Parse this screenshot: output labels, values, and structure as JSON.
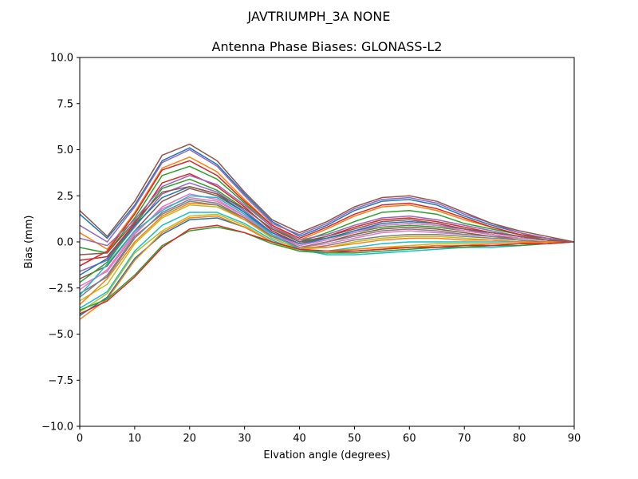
{
  "figure": {
    "suptitle": "JAVTRIUMPH_3A   NONE"
  },
  "chart_data": {
    "type": "line",
    "title": "Antenna Phase Biases: GLONASS-L2",
    "xlabel": "Elvation angle (degrees)",
    "ylabel": "Bias (mm)",
    "xlim": [
      0,
      90
    ],
    "ylim": [
      -10,
      10
    ],
    "xticks": [
      "0",
      "10",
      "20",
      "30",
      "40",
      "50",
      "60",
      "70",
      "80",
      "90"
    ],
    "yticks": [
      "−10.0",
      "−7.5",
      "−5.0",
      "−2.5",
      "0.0",
      "2.5",
      "5.0",
      "7.5",
      "10.0"
    ],
    "grid": false,
    "x": [
      0,
      5,
      10,
      15,
      20,
      25,
      30,
      35,
      40,
      45,
      50,
      55,
      60,
      65,
      70,
      75,
      80,
      85,
      90
    ],
    "envelope": {
      "upper": [
        1.8,
        0.4,
        2.3,
        4.8,
        5.4,
        4.5,
        2.8,
        1.2,
        0.6,
        1.2,
        2.0,
        2.5,
        2.5,
        2.2,
        1.6,
        1.1,
        0.6,
        0.3,
        0.0
      ],
      "lower": [
        -4.4,
        -3.2,
        -1.9,
        -0.3,
        0.6,
        0.8,
        0.4,
        -0.1,
        -0.5,
        -0.7,
        -0.7,
        -0.6,
        -0.5,
        -0.4,
        -0.3,
        -0.3,
        -0.3,
        -0.2,
        0.0
      ]
    },
    "series": [
      {
        "color": "#1f77b4",
        "values": [
          1.5,
          0.2,
          2.0,
          4.4,
          5.1,
          4.2,
          2.6,
          1.1,
          0.3,
          0.9,
          1.7,
          2.2,
          2.3,
          2.0,
          1.4,
          0.9,
          0.5,
          0.2,
          0.0
        ]
      },
      {
        "color": "#ff7f0e",
        "values": [
          0.5,
          -0.4,
          1.6,
          4.0,
          4.6,
          3.8,
          2.3,
          0.9,
          0.1,
          0.7,
          1.4,
          1.9,
          2.0,
          1.7,
          1.2,
          0.8,
          0.4,
          0.2,
          0.0
        ]
      },
      {
        "color": "#2ca02c",
        "values": [
          -0.3,
          -0.6,
          1.3,
          3.6,
          4.1,
          3.4,
          2.1,
          0.8,
          0.0,
          0.5,
          1.1,
          1.6,
          1.7,
          1.5,
          1.0,
          0.7,
          0.4,
          0.1,
          0.0
        ]
      },
      {
        "color": "#d62728",
        "values": [
          -1.0,
          -0.8,
          1.0,
          3.2,
          3.7,
          3.0,
          1.9,
          0.6,
          -0.1,
          0.3,
          0.8,
          1.2,
          1.3,
          1.1,
          0.8,
          0.5,
          0.3,
          0.1,
          0.0
        ]
      },
      {
        "color": "#9467bd",
        "values": [
          -1.6,
          -1.0,
          0.8,
          2.6,
          3.2,
          2.7,
          1.7,
          0.5,
          -0.2,
          0.2,
          0.6,
          0.9,
          1.0,
          0.9,
          0.7,
          0.4,
          0.2,
          0.1,
          0.0
        ]
      },
      {
        "color": "#8c564b",
        "values": [
          -2.0,
          -1.3,
          0.6,
          2.2,
          2.9,
          2.5,
          1.6,
          0.4,
          -0.3,
          0.0,
          0.4,
          0.7,
          0.8,
          0.7,
          0.5,
          0.3,
          0.2,
          0.1,
          0.0
        ]
      },
      {
        "color": "#e377c2",
        "values": [
          -2.4,
          -1.6,
          0.4,
          1.9,
          2.6,
          2.3,
          1.4,
          0.3,
          -0.3,
          -0.1,
          0.2,
          0.5,
          0.6,
          0.5,
          0.4,
          0.3,
          0.1,
          0.0,
          0.0
        ]
      },
      {
        "color": "#7f7f7f",
        "values": [
          -2.8,
          -1.9,
          0.2,
          1.6,
          2.3,
          2.1,
          1.3,
          0.2,
          -0.4,
          -0.2,
          0.1,
          0.3,
          0.4,
          0.4,
          0.3,
          0.2,
          0.1,
          0.0,
          0.0
        ]
      },
      {
        "color": "#bcbd22",
        "values": [
          -3.2,
          -2.3,
          -0.1,
          1.3,
          2.0,
          1.9,
          1.2,
          0.2,
          -0.4,
          -0.3,
          0.0,
          0.2,
          0.3,
          0.3,
          0.2,
          0.1,
          0.0,
          0.0,
          0.0
        ]
      },
      {
        "color": "#17becf",
        "values": [
          -3.6,
          -2.7,
          -0.5,
          0.9,
          1.6,
          1.6,
          1.0,
          0.1,
          -0.5,
          -0.5,
          -0.3,
          -0.1,
          0.0,
          0.0,
          0.0,
          0.0,
          0.0,
          0.0,
          0.0
        ]
      },
      {
        "color": "#1f77b4",
        "values": [
          -4.0,
          -3.0,
          -0.9,
          0.4,
          1.2,
          1.3,
          0.8,
          0.0,
          -0.5,
          -0.6,
          -0.5,
          -0.4,
          -0.3,
          -0.2,
          -0.2,
          -0.1,
          -0.1,
          0.0,
          0.0
        ]
      },
      {
        "color": "#ff7f0e",
        "values": [
          -3.4,
          -2.0,
          0.0,
          1.4,
          2.1,
          2.0,
          1.2,
          0.3,
          -0.3,
          -0.3,
          -0.1,
          0.1,
          0.2,
          0.2,
          0.1,
          0.1,
          0.0,
          0.0,
          0.0
        ]
      },
      {
        "color": "#2ca02c",
        "values": [
          -2.2,
          -1.1,
          0.9,
          2.9,
          3.4,
          2.8,
          1.8,
          0.7,
          0.0,
          0.2,
          0.5,
          0.8,
          0.9,
          0.8,
          0.6,
          0.4,
          0.2,
          0.1,
          0.0
        ]
      },
      {
        "color": "#d62728",
        "values": [
          -1.3,
          -0.5,
          1.5,
          3.9,
          4.4,
          3.6,
          2.2,
          0.9,
          0.2,
          0.8,
          1.5,
          2.0,
          2.1,
          1.8,
          1.3,
          0.8,
          0.4,
          0.2,
          0.0
        ]
      },
      {
        "color": "#9467bd",
        "values": [
          0.9,
          0.0,
          1.9,
          4.3,
          5.0,
          4.1,
          2.5,
          1.0,
          0.4,
          1.0,
          1.8,
          2.3,
          2.4,
          2.1,
          1.5,
          1.0,
          0.5,
          0.2,
          0.0
        ]
      },
      {
        "color": "#8c564b",
        "values": [
          1.7,
          0.3,
          2.2,
          4.7,
          5.3,
          4.4,
          2.7,
          1.2,
          0.5,
          1.1,
          1.9,
          2.4,
          2.5,
          2.2,
          1.6,
          1.0,
          0.6,
          0.3,
          0.0
        ]
      },
      {
        "color": "#e377c2",
        "values": [
          -2.6,
          -1.5,
          0.5,
          1.8,
          2.4,
          2.2,
          1.4,
          0.4,
          -0.2,
          0.1,
          0.5,
          0.9,
          1.0,
          0.9,
          0.6,
          0.4,
          0.2,
          0.1,
          0.0
        ]
      },
      {
        "color": "#7f7f7f",
        "values": [
          -3.0,
          -1.8,
          0.3,
          1.5,
          2.2,
          2.0,
          1.3,
          0.3,
          -0.3,
          0.0,
          0.3,
          0.6,
          0.7,
          0.6,
          0.4,
          0.3,
          0.1,
          0.0,
          0.0
        ]
      },
      {
        "color": "#bcbd22",
        "values": [
          -3.8,
          -2.8,
          -0.6,
          0.6,
          1.4,
          1.5,
          0.9,
          0.0,
          -0.5,
          -0.6,
          -0.4,
          -0.3,
          -0.2,
          -0.1,
          -0.1,
          -0.1,
          -0.1,
          0.0,
          0.0
        ]
      },
      {
        "color": "#17becf",
        "values": [
          -2.9,
          -1.2,
          0.6,
          1.7,
          2.5,
          2.4,
          1.5,
          0.4,
          -0.4,
          -0.7,
          -0.7,
          -0.6,
          -0.5,
          -0.4,
          -0.3,
          -0.3,
          -0.2,
          -0.1,
          0.0
        ]
      },
      {
        "color": "#1f77b4",
        "values": [
          -1.8,
          -0.9,
          0.9,
          2.4,
          3.0,
          2.6,
          1.6,
          0.5,
          -0.1,
          0.2,
          0.6,
          1.0,
          1.1,
          1.0,
          0.7,
          0.5,
          0.3,
          0.1,
          0.0
        ]
      },
      {
        "color": "#ff7f0e",
        "values": [
          -4.2,
          -3.1,
          -1.0,
          0.5,
          1.3,
          1.4,
          0.8,
          0.0,
          -0.4,
          -0.5,
          -0.4,
          -0.3,
          -0.3,
          -0.2,
          -0.2,
          -0.1,
          -0.1,
          0.0,
          0.0
        ]
      },
      {
        "color": "#2ca02c",
        "values": [
          -3.7,
          -3.1,
          -1.8,
          -0.2,
          0.6,
          0.8,
          0.5,
          -0.1,
          -0.5,
          -0.6,
          -0.6,
          -0.5,
          -0.4,
          -0.3,
          -0.3,
          -0.2,
          -0.2,
          -0.1,
          0.0
        ]
      },
      {
        "color": "#d62728",
        "values": [
          -3.9,
          -3.2,
          -1.9,
          -0.3,
          0.7,
          0.9,
          0.5,
          0.0,
          -0.4,
          -0.5,
          -0.5,
          -0.4,
          -0.3,
          -0.3,
          -0.2,
          -0.2,
          -0.1,
          -0.1,
          0.0
        ]
      },
      {
        "color": "#9467bd",
        "values": [
          0.2,
          -0.2,
          1.2,
          3.0,
          3.6,
          3.1,
          2.0,
          0.8,
          0.1,
          0.4,
          0.9,
          1.3,
          1.4,
          1.2,
          0.9,
          0.6,
          0.3,
          0.1,
          0.0
        ]
      },
      {
        "color": "#8c564b",
        "values": [
          -0.7,
          -0.6,
          1.1,
          2.7,
          3.0,
          2.6,
          1.8,
          0.7,
          0.0,
          0.3,
          0.7,
          1.1,
          1.2,
          1.0,
          0.7,
          0.5,
          0.3,
          0.1,
          0.0
        ]
      }
    ]
  }
}
